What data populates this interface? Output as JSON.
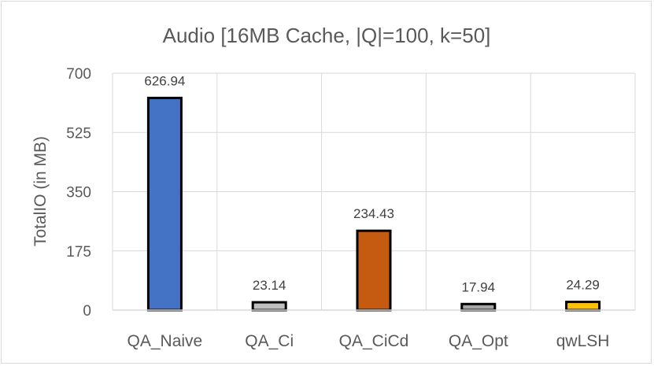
{
  "chart_data": {
    "type": "bar",
    "title": "Audio [16MB Cache, |Q|=100, k=50]",
    "xlabel": "",
    "ylabel": "TotalIO (in MB)",
    "categories": [
      "QA_Naive",
      "QA_Ci",
      "QA_CiCd",
      "QA_Opt",
      "qwLSH"
    ],
    "values": [
      626.94,
      23.14,
      234.43,
      17.94,
      24.29
    ],
    "value_labels": [
      "626.94",
      "23.14",
      "234.43",
      "17.94",
      "24.29"
    ],
    "bar_colors": [
      "#4472c4",
      "#bfbfbf",
      "#c55a11",
      "#a6a6a6",
      "#ffc000"
    ],
    "ylim": [
      0,
      700
    ],
    "yticks": [
      0,
      175,
      350,
      525,
      700
    ],
    "ytick_labels": [
      "0",
      "175",
      "350",
      "525",
      "700"
    ],
    "grid": true,
    "legend": "none"
  }
}
